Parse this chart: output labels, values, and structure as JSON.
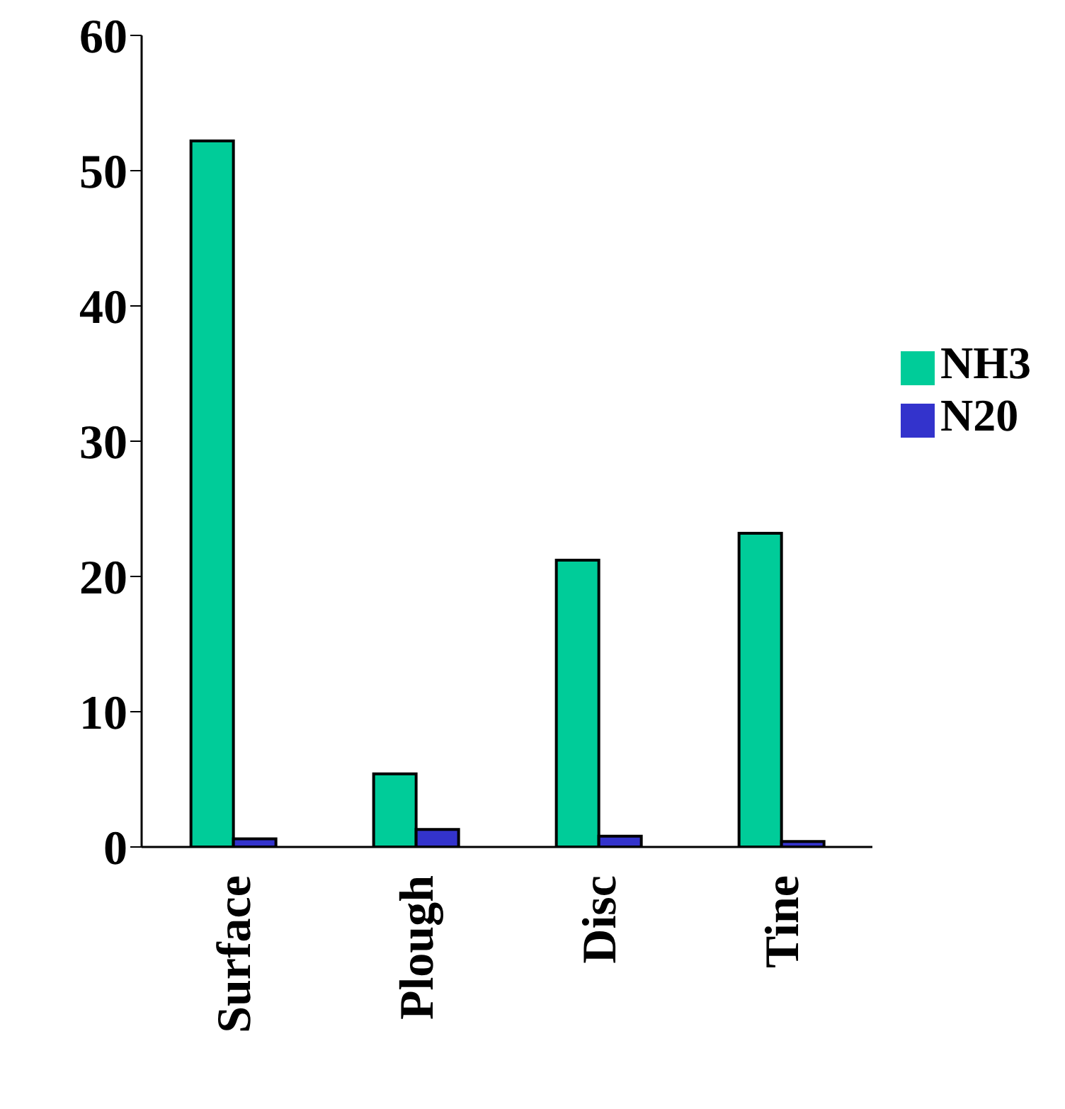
{
  "chart_data": {
    "type": "bar",
    "categories": [
      "Surface",
      "Plough",
      "Disc",
      "Tine"
    ],
    "series": [
      {
        "name": "NH3",
        "color": "#00cc99",
        "values": [
          52.2,
          5.4,
          21.2,
          23.2
        ]
      },
      {
        "name": "N20",
        "color": "#3333cc",
        "values": [
          0.6,
          1.3,
          0.8,
          0.4
        ]
      }
    ],
    "ylim": [
      0,
      60
    ],
    "yticks": [
      0,
      10,
      20,
      30,
      40,
      50,
      60
    ],
    "grid": false,
    "legend": "right"
  }
}
